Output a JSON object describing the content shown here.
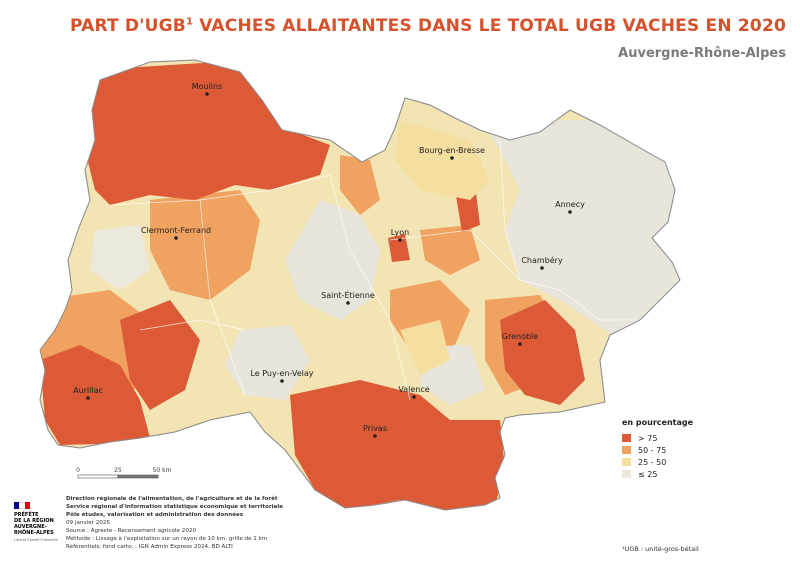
{
  "header": {
    "title_main": "PART D'UGB",
    "title_sup": "1",
    "title_rest": " VACHES ALLAITANTES DANS LE TOTAL UGB VACHES EN 2020",
    "subtitle": "Auvergne-Rhône-Alpes"
  },
  "cities": [
    {
      "name": "Moulins"
    },
    {
      "name": "Bourg-en-Bresse"
    },
    {
      "name": "Annecy"
    },
    {
      "name": "Clermont-Ferrand"
    },
    {
      "name": "Lyon"
    },
    {
      "name": "Chambéry"
    },
    {
      "name": "Saint-Étienne"
    },
    {
      "name": "Grenoble"
    },
    {
      "name": "Le Puy-en-Velay"
    },
    {
      "name": "Valence"
    },
    {
      "name": "Aurillac"
    },
    {
      "name": "Privas"
    }
  ],
  "legend": {
    "title": "en pourcentage",
    "items": [
      {
        "label": "> 75",
        "color": "#dc5b36"
      },
      {
        "label": "50 - 75",
        "color": "#f0a260"
      },
      {
        "label": "25 - 50",
        "color": "#f5dfa0"
      },
      {
        "label": "≤ 25",
        "color": "#ece8dc"
      }
    ]
  },
  "scale": {
    "t0": "0",
    "t1": "25",
    "t2": "50 km"
  },
  "logo": {
    "line1": "PRÉFÈTE",
    "line2": "DE LA RÉGION",
    "line3": "AUVERGNE-",
    "line4": "RHÔNE-ALPES",
    "motto": "Liberté Égalité Fraternité"
  },
  "footer": {
    "line1": "Direction régionale de l'alimentation, de l'agriculture et de la forêt",
    "line2": "Service régional d'information statistique économique et territoriale",
    "line3": "Pôle études, valorisation et administration des données",
    "line4": "09 janvier 2025",
    "line5": "Source : Agreste - Recensement agricole 2020",
    "line6": "Méthode : Lissage à l'exploitation sur un rayon de 10 km, grille de 1 km",
    "line7": "Référentiels, fond carto. : IGN Admin Express 2024, BD ALTI"
  },
  "note": "¹UGB : unité-gros-bétail",
  "colors": {
    "accent": "#d4532d",
    "high": "#dc5b36",
    "mid": "#f0a260",
    "low": "#f5dfa0",
    "min": "#ece8dc"
  }
}
